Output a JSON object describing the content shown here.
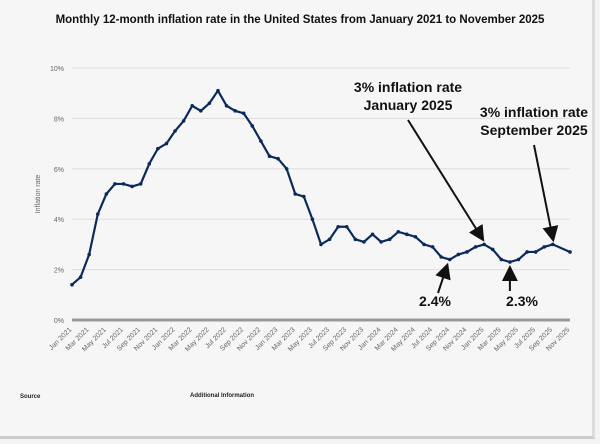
{
  "chart_data": {
    "type": "line",
    "title": "Monthly 12-month inflation rate in the United States from January 2021 to November 2025",
    "ylabel": "Inflation rate",
    "xlabel": "",
    "ylim": [
      0,
      10
    ],
    "yticks": [
      "0%",
      "2%",
      "4%",
      "6%",
      "8%",
      "10%"
    ],
    "grid": true,
    "line_color": "#0b2a5a",
    "x": [
      "Jan 2021",
      "Feb 2021",
      "Mar 2021",
      "Apr 2021",
      "May 2021",
      "Jun 2021",
      "Jul 2021",
      "Aug 2021",
      "Sep 2021",
      "Oct 2021",
      "Nov 2021",
      "Dec 2021",
      "Jan 2022",
      "Feb 2022",
      "Mar 2022",
      "Apr 2022",
      "May 2022",
      "Jun 2022",
      "Jul 2022",
      "Aug 2022",
      "Sep 2022",
      "Oct 2022",
      "Nov 2022",
      "Dec 2022",
      "Jan 2023",
      "Feb 2023",
      "Mar 2023",
      "Apr 2023",
      "May 2023",
      "Jun 2023",
      "Jul 2023",
      "Aug 2023",
      "Sep 2023",
      "Oct 2023",
      "Nov 2023",
      "Dec 2023",
      "Jan 2024",
      "Feb 2024",
      "Mar 2024",
      "Apr 2024",
      "May 2024",
      "Jun 2024",
      "Jul 2024",
      "Aug 2024",
      "Sep 2024",
      "Oct 2024",
      "Nov 2024",
      "Dec 2024",
      "Jan 2025",
      "Feb 2025",
      "Mar 2025",
      "Apr 2025",
      "May 2025",
      "Jun 2025",
      "Jul 2025",
      "Aug 2025",
      "Sep 2025",
      "Nov 2025"
    ],
    "values": [
      1.4,
      1.7,
      2.6,
      4.2,
      5.0,
      5.4,
      5.4,
      5.3,
      5.4,
      6.2,
      6.8,
      7.0,
      7.5,
      7.9,
      8.5,
      8.3,
      8.6,
      9.1,
      8.5,
      8.3,
      8.2,
      7.7,
      7.1,
      6.5,
      6.4,
      6.0,
      5.0,
      4.9,
      4.0,
      3.0,
      3.2,
      3.7,
      3.7,
      3.2,
      3.1,
      3.4,
      3.1,
      3.2,
      3.5,
      3.4,
      3.3,
      3.0,
      2.9,
      2.5,
      2.4,
      2.6,
      2.7,
      2.9,
      3.0,
      2.8,
      2.4,
      2.3,
      2.4,
      2.7,
      2.7,
      2.9,
      3.0,
      2.7
    ],
    "annotations": [
      {
        "text_lines": [
          "3% inflation rate",
          "January 2025"
        ],
        "x": "Jan 2025",
        "y": 3.0
      },
      {
        "text_lines": [
          "3% inflation rate",
          "September 2025"
        ],
        "x": "Sep 2025",
        "y": 3.0
      },
      {
        "text": "2.4%",
        "x": "Sep 2024",
        "y": 2.4
      },
      {
        "text": "2.3%",
        "x": "Apr 2025",
        "y": 2.3
      }
    ]
  },
  "footer": {
    "source_label": "Source",
    "additional_label": "Additional Information"
  }
}
